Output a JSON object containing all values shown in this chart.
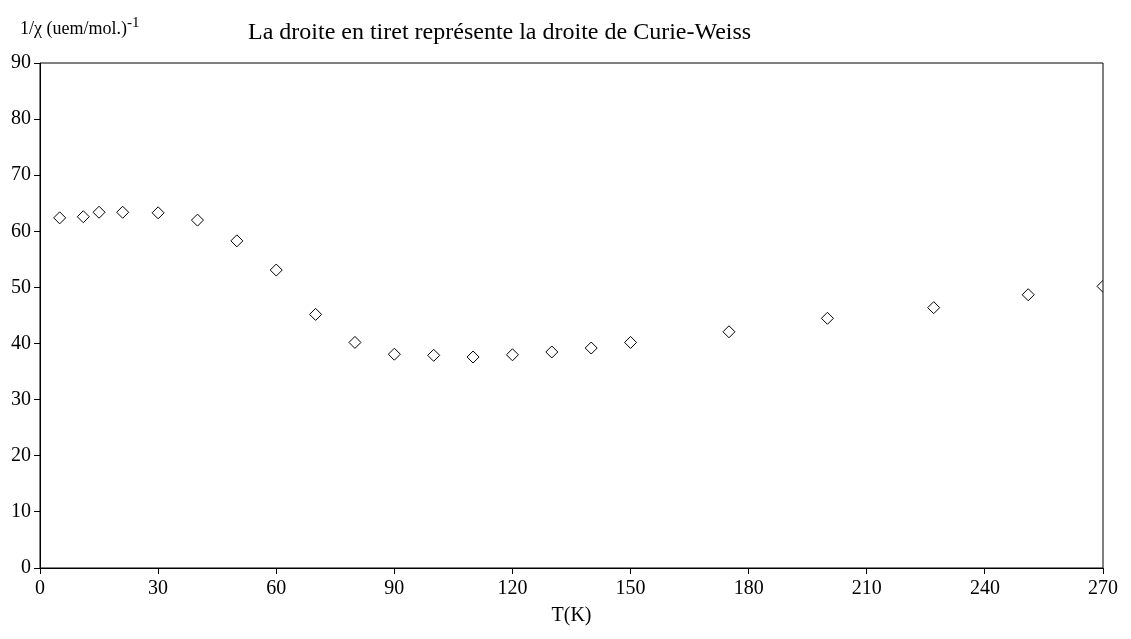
{
  "chart_data": {
    "type": "scatter",
    "title": "La droite en tiret représente la droite de Curie-Weiss",
    "ylabel": "1/χ (uem/mol.)$^{-1}$",
    "xlabel": "T(K)",
    "x": [
      5,
      11,
      15,
      21,
      30,
      40,
      50,
      60,
      70,
      80,
      90,
      100,
      110,
      120,
      130,
      140,
      150,
      175,
      200,
      227,
      251,
      270
    ],
    "series": [
      {
        "color": "#000000",
        "values": [
          62.4,
          62.6,
          63.4,
          63.4,
          63.3,
          62.0,
          58.3,
          53.1,
          45.2,
          40.2,
          38.1,
          37.9,
          37.6,
          38.0,
          38.5,
          39.2,
          40.2,
          42.1,
          44.5,
          46.4,
          48.7,
          50.2
        ]
      }
    ],
    "xlim": [
      0,
      270
    ],
    "xticks": [
      0,
      30,
      60,
      90,
      120,
      150,
      180,
      210,
      240,
      270
    ],
    "ylim": [
      0,
      90
    ],
    "yticks": [
      0,
      10,
      20,
      30,
      40,
      50,
      60,
      70,
      80,
      90
    ],
    "marker": "diamond",
    "grid": false,
    "legend": false
  }
}
